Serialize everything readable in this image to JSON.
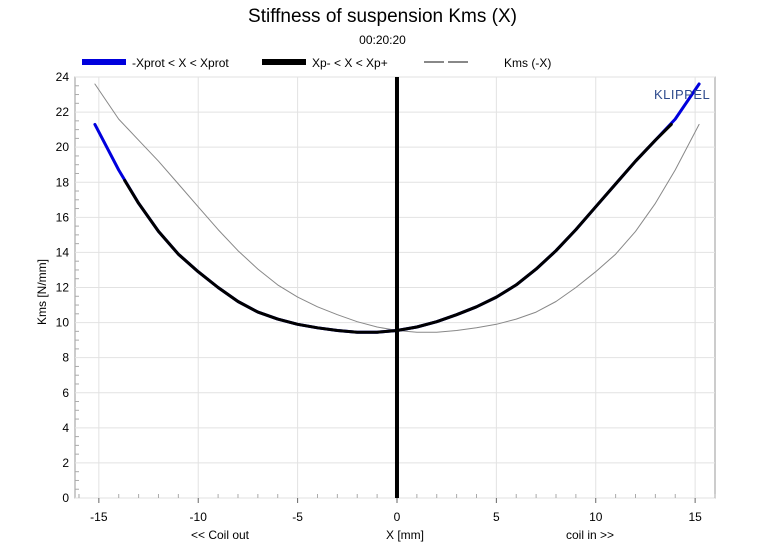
{
  "header": {
    "title": "Stiffness of suspension Kms (X)",
    "time": "00:20:20"
  },
  "legend": [
    {
      "label": "-Xprot < X < Xprot",
      "color": "#0000dd",
      "style": "thick"
    },
    {
      "label": "Xp- < X < Xp+",
      "color": "#000000",
      "style": "thick"
    },
    {
      "label": "Kms (-X)",
      "color": "#888888",
      "style": "thin"
    }
  ],
  "watermark": "KLIPPEL",
  "chart_data": {
    "type": "line",
    "title": "Stiffness of suspension Kms (X)",
    "subtitle": "00:20:20",
    "xlabel": "X [mm]",
    "ylabel": "Kms [N/mm]",
    "x_annotations": {
      "left": "<< Coil out",
      "right": "coil in >>"
    },
    "xlim": [
      -16.2,
      16.0
    ],
    "ylim": [
      0,
      24
    ],
    "x_ticks": [
      -15,
      -10,
      -5,
      0,
      5,
      10,
      15
    ],
    "y_ticks": [
      0,
      2,
      4,
      6,
      8,
      10,
      12,
      14,
      16,
      18,
      20,
      22,
      24
    ],
    "grid": true,
    "legend_position": "top",
    "vertical_marker_x": 0,
    "series": [
      {
        "name": "-Xprot < X < Xprot",
        "color": "#0000dd",
        "x": [
          -15.2,
          -14,
          -13,
          -12,
          -11,
          -10,
          -9,
          -8,
          -7,
          -6,
          -5,
          -4,
          -3,
          -2,
          -1,
          0,
          1,
          2,
          3,
          4,
          5,
          6,
          7,
          8,
          9,
          10,
          11,
          12,
          13,
          14,
          15.2
        ],
        "y": [
          21.3,
          18.7,
          16.8,
          15.2,
          13.9,
          12.9,
          12.0,
          11.2,
          10.6,
          10.2,
          9.9,
          9.7,
          9.55,
          9.45,
          9.45,
          9.55,
          9.75,
          10.05,
          10.45,
          10.9,
          11.45,
          12.15,
          13.05,
          14.1,
          15.3,
          16.6,
          17.9,
          19.2,
          20.4,
          21.6,
          23.6
        ]
      },
      {
        "name": "Xp- < X < Xp+",
        "color": "#000000",
        "x": [
          -13.7,
          -13,
          -12,
          -11,
          -10,
          -9,
          -8,
          -7,
          -6,
          -5,
          -4,
          -3,
          -2,
          -1,
          0,
          1,
          2,
          3,
          4,
          5,
          6,
          7,
          8,
          9,
          10,
          11,
          12,
          13,
          13.8
        ],
        "y": [
          18.1,
          16.8,
          15.2,
          13.9,
          12.9,
          12.0,
          11.2,
          10.6,
          10.2,
          9.9,
          9.7,
          9.55,
          9.45,
          9.45,
          9.55,
          9.75,
          10.05,
          10.45,
          10.9,
          11.45,
          12.15,
          13.05,
          14.1,
          15.3,
          16.6,
          17.9,
          19.2,
          20.4,
          21.3
        ]
      },
      {
        "name": "Kms (-X)",
        "color": "#888888",
        "x": [
          -15.2,
          -14,
          -13,
          -12,
          -11,
          -10,
          -9,
          -8,
          -7,
          -6,
          -5,
          -4,
          -3,
          -2,
          -1,
          0,
          1,
          2,
          3,
          4,
          5,
          6,
          7,
          8,
          9,
          10,
          11,
          12,
          13,
          14,
          15.2
        ],
        "y": [
          23.6,
          21.6,
          20.4,
          19.2,
          17.9,
          16.6,
          15.3,
          14.1,
          13.05,
          12.15,
          11.45,
          10.9,
          10.45,
          10.05,
          9.75,
          9.55,
          9.45,
          9.45,
          9.55,
          9.7,
          9.9,
          10.2,
          10.6,
          11.2,
          12.0,
          12.9,
          13.9,
          15.2,
          16.8,
          18.7,
          21.3
        ]
      }
    ]
  }
}
